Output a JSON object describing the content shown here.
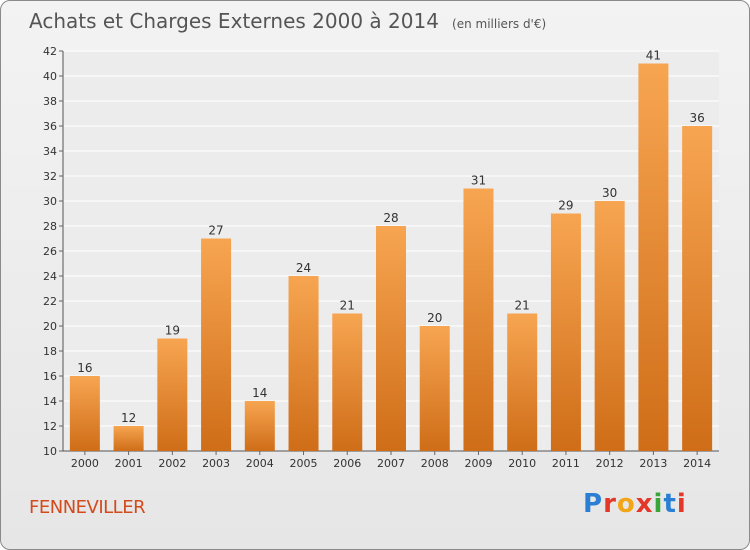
{
  "header": {
    "title": "Achats et Charges Externes 2000 à 2014",
    "subtitle": "(en milliers d'€)"
  },
  "footer": {
    "city": "FENNEVILLER",
    "logo": "Proxiti"
  },
  "colors": {
    "bar_light": "#f7a551",
    "bar_dark": "#cf6d18",
    "city": "#d34b1c"
  },
  "chart_data": {
    "type": "bar",
    "title": "Achats et Charges Externes 2000 à 2014",
    "subtitle": "(en milliers d'€)",
    "xlabel": "",
    "ylabel": "",
    "categories": [
      "2000",
      "2001",
      "2002",
      "2003",
      "2004",
      "2005",
      "2006",
      "2007",
      "2008",
      "2009",
      "2010",
      "2011",
      "2012",
      "2013",
      "2014"
    ],
    "values": [
      16,
      12,
      19,
      27,
      14,
      24,
      21,
      28,
      20,
      31,
      21,
      29,
      30,
      41,
      36
    ],
    "ylim": [
      10,
      42
    ],
    "yticks": [
      10,
      12,
      14,
      16,
      18,
      20,
      22,
      24,
      26,
      28,
      30,
      32,
      34,
      36,
      38,
      40,
      42
    ],
    "grid": true,
    "data_labels": true
  }
}
